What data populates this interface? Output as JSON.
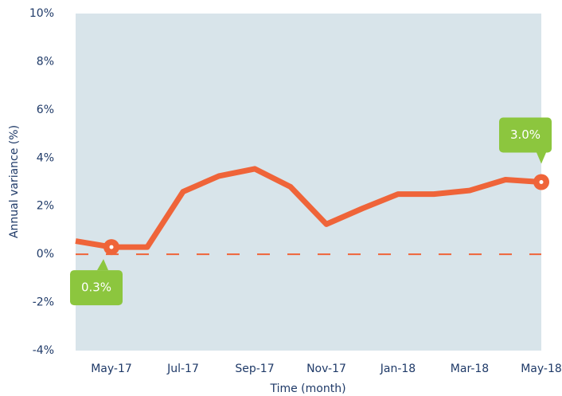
{
  "chart_data": {
    "type": "line",
    "y_label": "Annual variance (%)",
    "x_label": "Time (month)",
    "categories": [
      null,
      "May-17",
      null,
      "Jul-17",
      null,
      "Sep-17",
      null,
      "Nov-17",
      null,
      "Jan-18",
      null,
      "Mar-18",
      null,
      "May-18"
    ],
    "series": [
      {
        "name": "Annual variance",
        "color": "#ef6439",
        "values": [
          0.55,
          0.3,
          0.3,
          2.6,
          3.25,
          3.55,
          2.8,
          1.25,
          1.9,
          2.5,
          2.5,
          2.65,
          3.1,
          3.0
        ],
        "value_labels": [
          null,
          "0.3%",
          null,
          null,
          null,
          null,
          null,
          null,
          null,
          null,
          null,
          null,
          null,
          "3.0%"
        ]
      }
    ],
    "reference_line": 0,
    "ylim": [
      -4,
      10
    ],
    "yticks": [
      {
        "value": -4,
        "label": "-4%"
      },
      {
        "value": -2,
        "label": "-2%"
      },
      {
        "value": 0,
        "label": "0%"
      },
      {
        "value": 2,
        "label": "2%"
      },
      {
        "value": 4,
        "label": "4%"
      },
      {
        "value": 6,
        "label": "6%"
      },
      {
        "value": 8,
        "label": "8%"
      },
      {
        "value": 10,
        "label": "10%"
      }
    ],
    "plot_background": "#d8e4ea",
    "callout_color": "#8cc63e"
  }
}
